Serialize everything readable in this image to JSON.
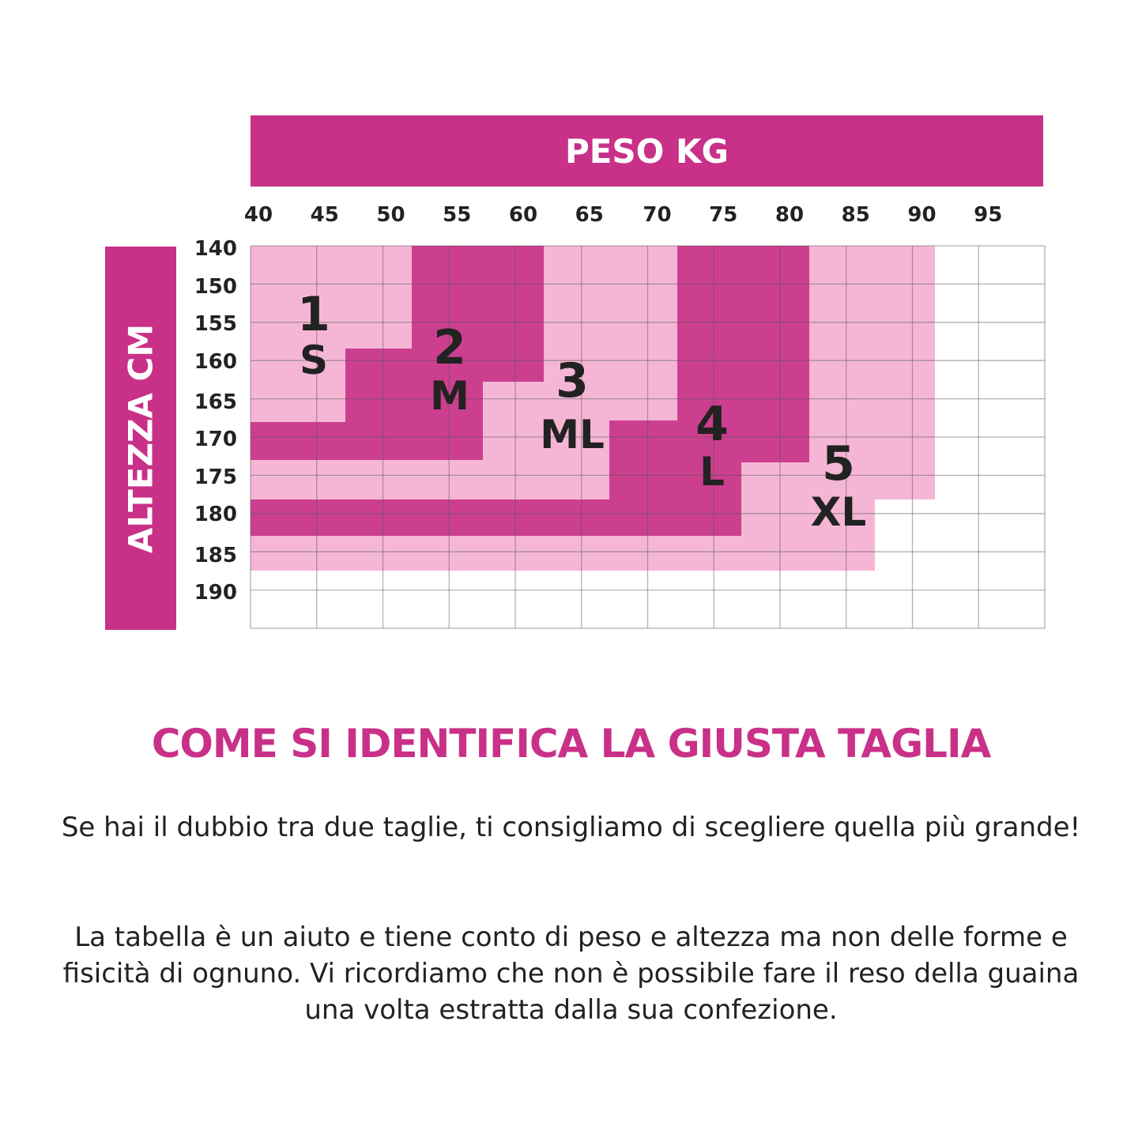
{
  "chart_data": {
    "type": "heatmap",
    "title": "",
    "xlabel": "PESO KG",
    "ylabel": "ALTEZZA CM",
    "x_ticks": [
      "40",
      "45",
      "50",
      "55",
      "60",
      "65",
      "70",
      "75",
      "80",
      "85",
      "90",
      "95"
    ],
    "y_ticks": [
      "140",
      "150",
      "155",
      "160",
      "165",
      "170",
      "175",
      "180",
      "185",
      "190"
    ],
    "sizes": [
      {
        "number": "1",
        "name": "S",
        "color": "#f5b6d6"
      },
      {
        "number": "2",
        "name": "M",
        "color": "#cc3f8f"
      },
      {
        "number": "3",
        "name": "ML",
        "color": "#f5b6d6"
      },
      {
        "number": "4",
        "name": "L",
        "color": "#cc3f8f"
      },
      {
        "number": "5",
        "name": "XL",
        "color": "#f5b6d6"
      }
    ],
    "grid": true
  },
  "colors": {
    "brand": "#c93088",
    "dark_zone": "#cc3f8f",
    "light_zone": "#f5b6d6"
  },
  "text": {
    "title": "COME SI IDENTIFICA LA GIUSTA TAGLIA",
    "para1": "Se hai il dubbio tra due taglie, ti consigliamo di scegliere quella più grande!",
    "para2": "La tabella è un aiuto e tiene conto di peso e altezza ma non delle forme e fisicità di ognuno. Vi ricordiamo che non è possibile fare il reso della guaina una volta estratta dalla sua confezione."
  }
}
